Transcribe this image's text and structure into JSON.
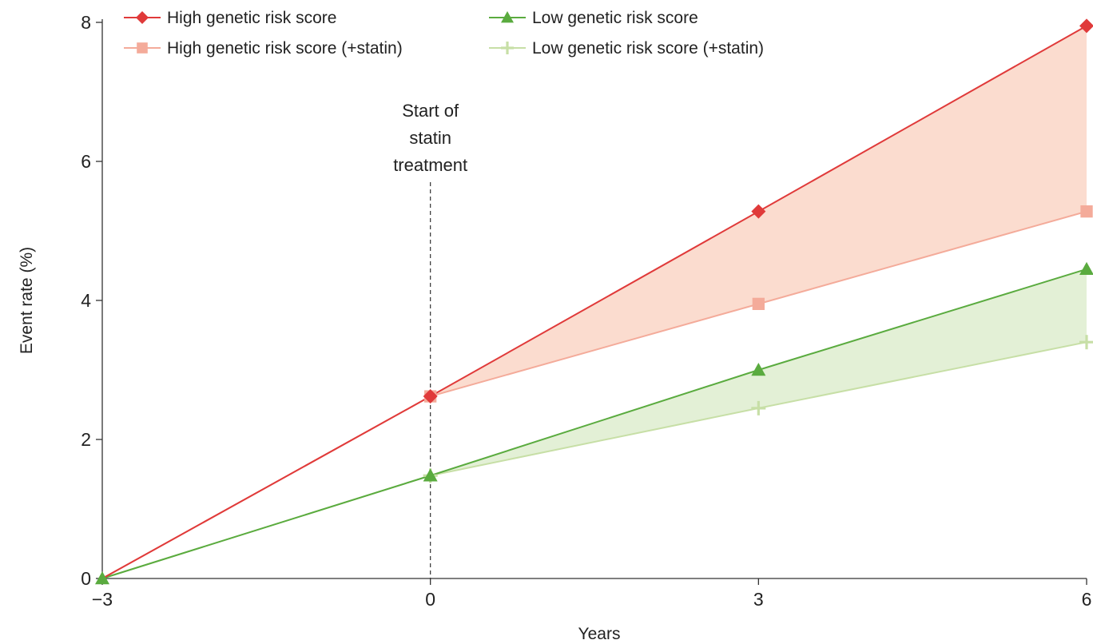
{
  "chart_data": {
    "type": "line",
    "xlabel": "Years",
    "ylabel": "Event rate (%)",
    "xlim": [
      -3,
      6
    ],
    "ylim": [
      0,
      8
    ],
    "xticks": [
      -3,
      0,
      3,
      6
    ],
    "yticks": [
      0,
      2,
      4,
      6,
      8
    ],
    "grid": false,
    "legend_position": "top",
    "annotation": {
      "lines": [
        "Start of",
        "statin",
        "treatment"
      ],
      "x": 0
    },
    "series": [
      {
        "name": "High genetic risk score",
        "color": "#e03a3a",
        "marker": "diamond",
        "x": [
          -3,
          0,
          3,
          6
        ],
        "y": [
          0,
          2.62,
          5.28,
          7.95
        ]
      },
      {
        "name": "High genetic risk score (+statin)",
        "color": "#f4ab9a",
        "marker": "square",
        "x": [
          -3,
          0,
          3,
          6
        ],
        "y": [
          0,
          2.62,
          3.95,
          5.28
        ]
      },
      {
        "name": "Low genetic risk score",
        "color": "#5aab3f",
        "marker": "triangle",
        "x": [
          -3,
          0,
          3,
          6
        ],
        "y": [
          0,
          1.48,
          3.0,
          4.45
        ]
      },
      {
        "name": "Low genetic risk score (+statin)",
        "color": "#c7dfa6",
        "marker": "plus",
        "x": [
          -3,
          0,
          3,
          6
        ],
        "y": [
          0,
          1.48,
          2.45,
          3.4
        ]
      }
    ],
    "shaded_regions": [
      {
        "between": [
          "High genetic risk score",
          "High genetic risk score (+statin)"
        ],
        "color": "#fbdccf"
      },
      {
        "between": [
          "Low genetic risk score",
          "Low genetic risk score (+statin)"
        ],
        "color": "#e3f0d6"
      }
    ]
  }
}
